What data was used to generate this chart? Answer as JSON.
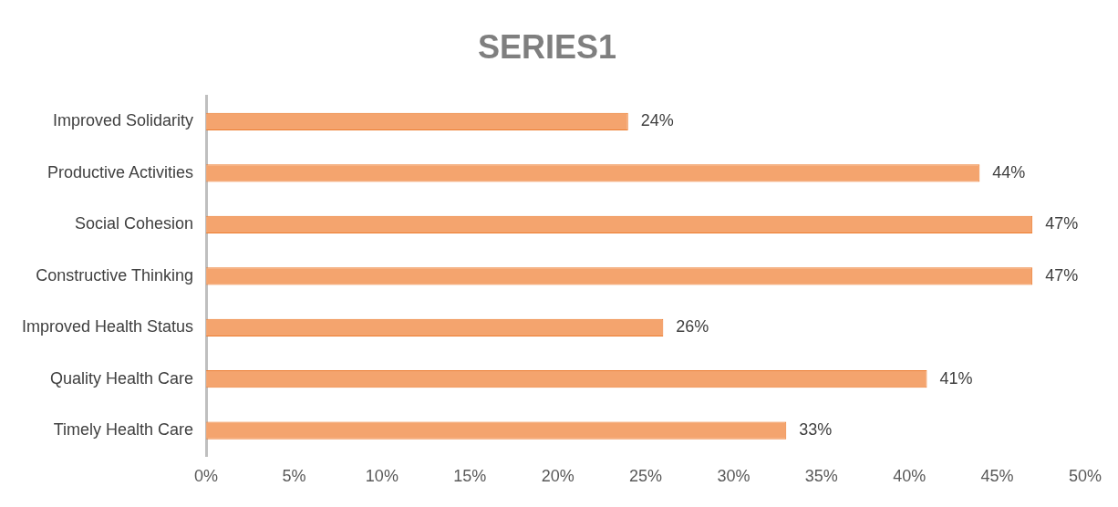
{
  "chart_data": {
    "type": "bar",
    "orientation": "horizontal",
    "title": "SERIES1",
    "categories": [
      "Improved Solidarity",
      "Productive Activities",
      "Social Cohesion",
      "Constructive Thinking",
      "Improved Health Status",
      "Quality Health Care",
      "Timely Health Care"
    ],
    "values": [
      24,
      44,
      47,
      47,
      26,
      41,
      33
    ],
    "value_labels": [
      "24%",
      "44%",
      "47%",
      "47%",
      "26%",
      "41%",
      "33%"
    ],
    "color": "#f4a46e",
    "xlim": [
      0,
      50
    ],
    "xticks": [
      {
        "value": 0,
        "label": "0%"
      },
      {
        "value": 5,
        "label": "5%"
      },
      {
        "value": 10,
        "label": "10%"
      },
      {
        "value": 15,
        "label": "15%"
      },
      {
        "value": 20,
        "label": "20%"
      },
      {
        "value": 25,
        "label": "25%"
      },
      {
        "value": 30,
        "label": "30%"
      },
      {
        "value": 35,
        "label": "35%"
      },
      {
        "value": 40,
        "label": "40%"
      },
      {
        "value": 45,
        "label": "45%"
      },
      {
        "value": 50,
        "label": "50%"
      }
    ],
    "grid": false,
    "legend": false
  }
}
